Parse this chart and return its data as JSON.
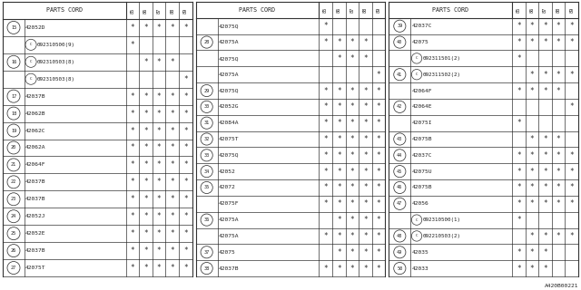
{
  "bg_color": "#ffffff",
  "line_color": "#333333",
  "text_color": "#222222",
  "diagram_id": "A420B00221",
  "col_headers": [
    "85",
    "86",
    "87",
    "88",
    "89"
  ],
  "tables": [
    {
      "rows": [
        {
          "num": "15",
          "part": "42052D",
          "c_part": false,
          "cols": [
            1,
            1,
            1,
            1,
            1
          ]
        },
        {
          "num": "",
          "part": "092310500(9)",
          "c_part": true,
          "cols": [
            1,
            0,
            0,
            0,
            0
          ]
        },
        {
          "num": "16",
          "part": "092310503(8)",
          "c_part": true,
          "cols": [
            0,
            1,
            1,
            1,
            0
          ]
        },
        {
          "num": "",
          "part": "092310503(8)",
          "c_part": true,
          "cols": [
            0,
            0,
            0,
            0,
            1
          ]
        },
        {
          "num": "17",
          "part": "42037B",
          "c_part": false,
          "cols": [
            1,
            1,
            1,
            1,
            1
          ]
        },
        {
          "num": "18",
          "part": "42062B",
          "c_part": false,
          "cols": [
            1,
            1,
            1,
            1,
            1
          ]
        },
        {
          "num": "19",
          "part": "42062C",
          "c_part": false,
          "cols": [
            1,
            1,
            1,
            1,
            1
          ]
        },
        {
          "num": "20",
          "part": "42062A",
          "c_part": false,
          "cols": [
            1,
            1,
            1,
            1,
            1
          ]
        },
        {
          "num": "21",
          "part": "42064F",
          "c_part": false,
          "cols": [
            1,
            1,
            1,
            1,
            1
          ]
        },
        {
          "num": "22",
          "part": "42037B",
          "c_part": false,
          "cols": [
            1,
            1,
            1,
            1,
            1
          ]
        },
        {
          "num": "23",
          "part": "42037B",
          "c_part": false,
          "cols": [
            1,
            1,
            1,
            1,
            1
          ]
        },
        {
          "num": "24",
          "part": "42052J",
          "c_part": false,
          "cols": [
            1,
            1,
            1,
            1,
            1
          ]
        },
        {
          "num": "25",
          "part": "42052E",
          "c_part": false,
          "cols": [
            1,
            1,
            1,
            1,
            1
          ]
        },
        {
          "num": "26",
          "part": "42037B",
          "c_part": false,
          "cols": [
            1,
            1,
            1,
            1,
            1
          ]
        },
        {
          "num": "27",
          "part": "42075T",
          "c_part": false,
          "cols": [
            1,
            1,
            1,
            1,
            1
          ]
        }
      ]
    },
    {
      "rows": [
        {
          "num": "",
          "part": "42075Q",
          "c_part": false,
          "cols": [
            1,
            0,
            0,
            0,
            0
          ]
        },
        {
          "num": "28",
          "part": "42075A",
          "c_part": false,
          "cols": [
            1,
            1,
            1,
            1,
            0
          ]
        },
        {
          "num": "",
          "part": "42075Q",
          "c_part": false,
          "cols": [
            0,
            1,
            1,
            1,
            0
          ]
        },
        {
          "num": "",
          "part": "42075A",
          "c_part": false,
          "cols": [
            0,
            0,
            0,
            0,
            1
          ]
        },
        {
          "num": "29",
          "part": "42075Q",
          "c_part": false,
          "cols": [
            1,
            1,
            1,
            1,
            1
          ]
        },
        {
          "num": "30",
          "part": "42052G",
          "c_part": false,
          "cols": [
            1,
            1,
            1,
            1,
            1
          ]
        },
        {
          "num": "31",
          "part": "42084A",
          "c_part": false,
          "cols": [
            1,
            1,
            1,
            1,
            1
          ]
        },
        {
          "num": "32",
          "part": "42075T",
          "c_part": false,
          "cols": [
            1,
            1,
            1,
            1,
            1
          ]
        },
        {
          "num": "33",
          "part": "42075Q",
          "c_part": false,
          "cols": [
            1,
            1,
            1,
            1,
            1
          ]
        },
        {
          "num": "34",
          "part": "42052",
          "c_part": false,
          "cols": [
            1,
            1,
            1,
            1,
            1
          ]
        },
        {
          "num": "35",
          "part": "42072",
          "c_part": false,
          "cols": [
            1,
            1,
            1,
            1,
            1
          ]
        },
        {
          "num": "",
          "part": "42075F",
          "c_part": false,
          "cols": [
            1,
            1,
            1,
            1,
            1
          ]
        },
        {
          "num": "36",
          "part": "42075A",
          "c_part": false,
          "cols": [
            0,
            1,
            1,
            1,
            1
          ]
        },
        {
          "num": "",
          "part": "42075A",
          "c_part": false,
          "cols": [
            1,
            1,
            1,
            1,
            1
          ]
        },
        {
          "num": "37",
          "part": "42075",
          "c_part": false,
          "cols": [
            0,
            1,
            1,
            1,
            1
          ]
        },
        {
          "num": "38",
          "part": "42037B",
          "c_part": false,
          "cols": [
            1,
            1,
            1,
            1,
            1
          ]
        }
      ]
    },
    {
      "rows": [
        {
          "num": "39",
          "part": "42037C",
          "c_part": false,
          "cols": [
            1,
            1,
            1,
            1,
            1
          ]
        },
        {
          "num": "40",
          "part": "42075",
          "c_part": false,
          "cols": [
            1,
            1,
            1,
            1,
            1
          ]
        },
        {
          "num": "",
          "part": "092311501(2)",
          "c_part": true,
          "cols": [
            1,
            0,
            0,
            0,
            0
          ]
        },
        {
          "num": "41",
          "part": "092311502(2)",
          "c_part": true,
          "cols": [
            0,
            1,
            1,
            1,
            1
          ]
        },
        {
          "num": "",
          "part": "42064F",
          "c_part": false,
          "cols": [
            1,
            1,
            1,
            1,
            0
          ]
        },
        {
          "num": "42",
          "part": "42064E",
          "c_part": false,
          "cols": [
            0,
            0,
            0,
            0,
            1
          ]
        },
        {
          "num": "",
          "part": "42075I",
          "c_part": false,
          "cols": [
            1,
            0,
            0,
            0,
            0
          ]
        },
        {
          "num": "43",
          "part": "42075B",
          "c_part": false,
          "cols": [
            0,
            1,
            1,
            1,
            0
          ]
        },
        {
          "num": "44",
          "part": "42037C",
          "c_part": false,
          "cols": [
            1,
            1,
            1,
            1,
            1
          ]
        },
        {
          "num": "45",
          "part": "42075U",
          "c_part": false,
          "cols": [
            1,
            1,
            1,
            1,
            1
          ]
        },
        {
          "num": "46",
          "part": "42075B",
          "c_part": false,
          "cols": [
            1,
            1,
            1,
            1,
            1
          ]
        },
        {
          "num": "47",
          "part": "42056",
          "c_part": false,
          "cols": [
            1,
            1,
            1,
            1,
            1
          ]
        },
        {
          "num": "",
          "part": "092310500(1)",
          "c_part": true,
          "cols": [
            1,
            0,
            0,
            0,
            0
          ]
        },
        {
          "num": "48",
          "part": "092210503(2)",
          "c_part": true,
          "cols": [
            0,
            1,
            1,
            1,
            1
          ]
        },
        {
          "num": "49",
          "part": "42035",
          "c_part": false,
          "cols": [
            1,
            1,
            1,
            0,
            0
          ]
        },
        {
          "num": "50",
          "part": "42033",
          "c_part": false,
          "cols": [
            1,
            1,
            1,
            0,
            0
          ]
        }
      ]
    }
  ]
}
